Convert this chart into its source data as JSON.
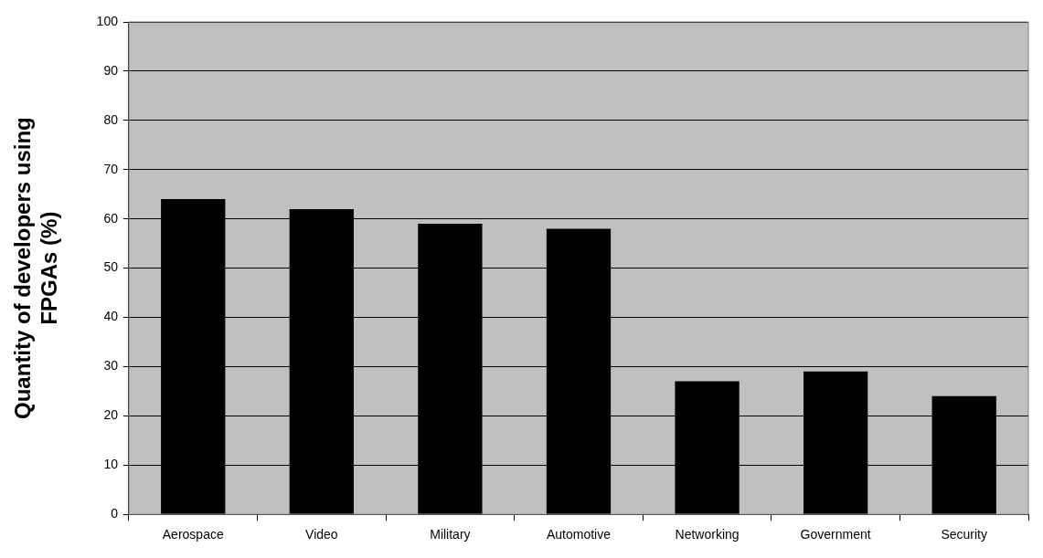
{
  "chart_data": {
    "type": "bar",
    "ylabel": "Quantity of developers using FPGAs (%)",
    "categories": [
      "Aerospace",
      "Video",
      "Military",
      "Automotive",
      "Networking",
      "Government",
      "Security"
    ],
    "values": [
      64,
      62,
      59,
      58,
      27,
      29,
      24
    ],
    "color": "#000000",
    "ylim": [
      0,
      100
    ],
    "yticks": [
      0,
      10,
      20,
      30,
      40,
      50,
      60,
      70,
      80,
      90,
      100
    ],
    "grid": "y",
    "legend": false
  }
}
